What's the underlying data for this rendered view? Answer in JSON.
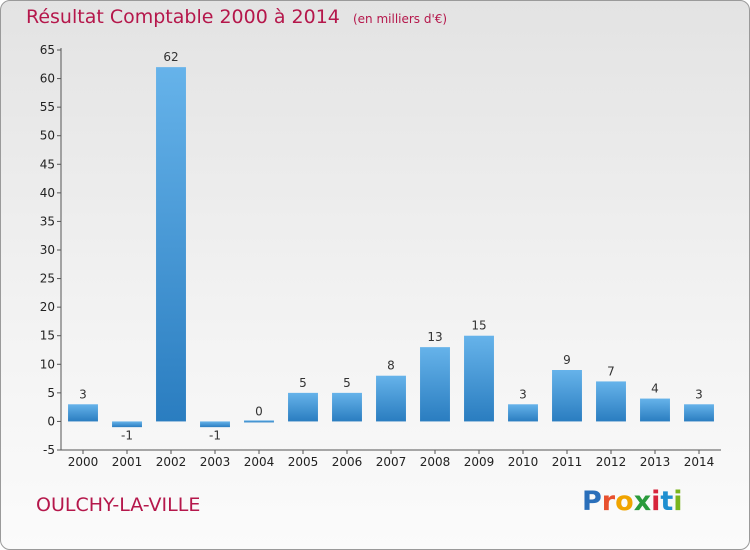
{
  "header": {
    "title": "Résultat Comptable 2000 à 2014",
    "unit": "(en milliers d'€)"
  },
  "footer": {
    "commune": "OULCHY-LA-VILLE",
    "logo_letters": [
      "P",
      "r",
      "o",
      "x",
      "i",
      "t",
      "i"
    ],
    "logo_colors": [
      "#2a6fba",
      "#e8502e",
      "#f0a400",
      "#2a9b3c",
      "#d7243b",
      "#1f8fd0",
      "#7ab51d"
    ]
  },
  "colors": {
    "bar_light": "#66b3ea",
    "bar_dark": "#2a7dc0",
    "title": "#b5174b"
  },
  "chart_data": {
    "type": "bar",
    "title": "Résultat Comptable 2000 à 2014",
    "unit": "(en milliers d'€)",
    "categories": [
      "2000",
      "2001",
      "2002",
      "2003",
      "2004",
      "2005",
      "2006",
      "2007",
      "2008",
      "2009",
      "2010",
      "2011",
      "2012",
      "2013",
      "2014"
    ],
    "values": [
      3,
      -1,
      62,
      -1,
      0,
      5,
      5,
      8,
      13,
      15,
      3,
      9,
      7,
      4,
      3
    ],
    "ylim": [
      -5,
      65
    ],
    "yticks": [
      -5,
      0,
      5,
      10,
      15,
      20,
      25,
      30,
      35,
      40,
      45,
      50,
      55,
      60,
      65
    ],
    "grid": false,
    "legend": "none"
  }
}
